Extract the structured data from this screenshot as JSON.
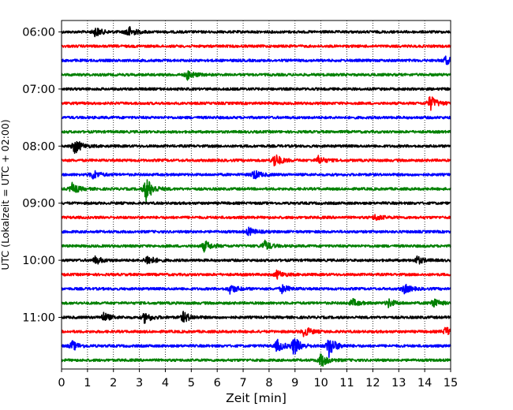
{
  "chart_data": {
    "type": "line",
    "title": "",
    "xlabel": "Zeit  [min]",
    "ylabel": "UTC (Lokalzeit = UTC + 02:00)",
    "xlim": [
      0,
      15
    ],
    "x_ticks": [
      "0",
      "1",
      "2",
      "3",
      "4",
      "5",
      "6",
      "7",
      "8",
      "9",
      "10",
      "11",
      "12",
      "13",
      "14",
      "15"
    ],
    "y_tick_labels": [
      "06:00",
      "07:00",
      "08:00",
      "09:00",
      "10:00",
      "11:00"
    ],
    "grid": {
      "x": true,
      "y": false,
      "style": "dotted"
    },
    "trace_interval_minutes": 15,
    "trace_colors": [
      "#000000",
      "#ff0000",
      "#0000ff",
      "#008000"
    ],
    "traces": [
      {
        "time": "06:00",
        "color": "#000000",
        "events": [
          {
            "t": 1.3,
            "amp": 6
          },
          {
            "t": 2.55,
            "amp": 8
          }
        ]
      },
      {
        "time": "06:15",
        "color": "#ff0000",
        "events": []
      },
      {
        "time": "06:30",
        "color": "#0000ff",
        "events": [
          {
            "t": 14.8,
            "amp": 5
          }
        ]
      },
      {
        "time": "06:45",
        "color": "#008000",
        "events": [
          {
            "t": 4.85,
            "amp": 6
          }
        ]
      },
      {
        "time": "07:00",
        "color": "#000000",
        "events": []
      },
      {
        "time": "07:15",
        "color": "#ff0000",
        "events": [
          {
            "t": 14.2,
            "amp": 10
          }
        ]
      },
      {
        "time": "07:30",
        "color": "#0000ff",
        "events": []
      },
      {
        "time": "07:45",
        "color": "#008000",
        "events": []
      },
      {
        "time": "08:00",
        "color": "#000000",
        "events": [
          {
            "t": 0.5,
            "amp": 10
          }
        ]
      },
      {
        "time": "08:15",
        "color": "#ff0000",
        "events": [
          {
            "t": 8.2,
            "amp": 9
          },
          {
            "t": 9.9,
            "amp": 5
          }
        ]
      },
      {
        "time": "08:30",
        "color": "#0000ff",
        "events": [
          {
            "t": 1.2,
            "amp": 6
          },
          {
            "t": 7.4,
            "amp": 6
          }
        ]
      },
      {
        "time": "08:45",
        "color": "#008000",
        "events": [
          {
            "t": 0.4,
            "amp": 7
          },
          {
            "t": 3.25,
            "amp": 16
          }
        ]
      },
      {
        "time": "09:00",
        "color": "#000000",
        "events": []
      },
      {
        "time": "09:15",
        "color": "#ff0000",
        "events": [
          {
            "t": 12.1,
            "amp": 4
          }
        ]
      },
      {
        "time": "09:30",
        "color": "#0000ff",
        "events": [
          {
            "t": 7.2,
            "amp": 5
          }
        ]
      },
      {
        "time": "09:45",
        "color": "#008000",
        "events": [
          {
            "t": 5.5,
            "amp": 7
          },
          {
            "t": 7.8,
            "amp": 7
          }
        ]
      },
      {
        "time": "10:00",
        "color": "#000000",
        "events": [
          {
            "t": 1.3,
            "amp": 5
          },
          {
            "t": 3.3,
            "amp": 7
          },
          {
            "t": 13.7,
            "amp": 5
          }
        ]
      },
      {
        "time": "10:15",
        "color": "#ff0000",
        "events": [
          {
            "t": 8.3,
            "amp": 5
          }
        ]
      },
      {
        "time": "10:30",
        "color": "#0000ff",
        "events": [
          {
            "t": 6.5,
            "amp": 6
          },
          {
            "t": 8.5,
            "amp": 5
          },
          {
            "t": 13.2,
            "amp": 6
          }
        ]
      },
      {
        "time": "10:45",
        "color": "#008000",
        "events": [
          {
            "t": 11.2,
            "amp": 5
          },
          {
            "t": 12.6,
            "amp": 5
          },
          {
            "t": 14.3,
            "amp": 6
          }
        ]
      },
      {
        "time": "11:00",
        "color": "#000000",
        "events": [
          {
            "t": 1.6,
            "amp": 6
          },
          {
            "t": 3.2,
            "amp": 7
          },
          {
            "t": 4.7,
            "amp": 7
          }
        ]
      },
      {
        "time": "11:15",
        "color": "#ff0000",
        "events": [
          {
            "t": 9.35,
            "amp": 7
          },
          {
            "t": 14.8,
            "amp": 6
          }
        ]
      },
      {
        "time": "11:30",
        "color": "#0000ff",
        "events": [
          {
            "t": 0.4,
            "amp": 6
          },
          {
            "t": 8.3,
            "amp": 8
          },
          {
            "t": 8.95,
            "amp": 12
          },
          {
            "t": 10.3,
            "amp": 14
          }
        ]
      },
      {
        "time": "11:45",
        "color": "#008000",
        "events": [
          {
            "t": 10.0,
            "amp": 9
          }
        ]
      }
    ]
  }
}
